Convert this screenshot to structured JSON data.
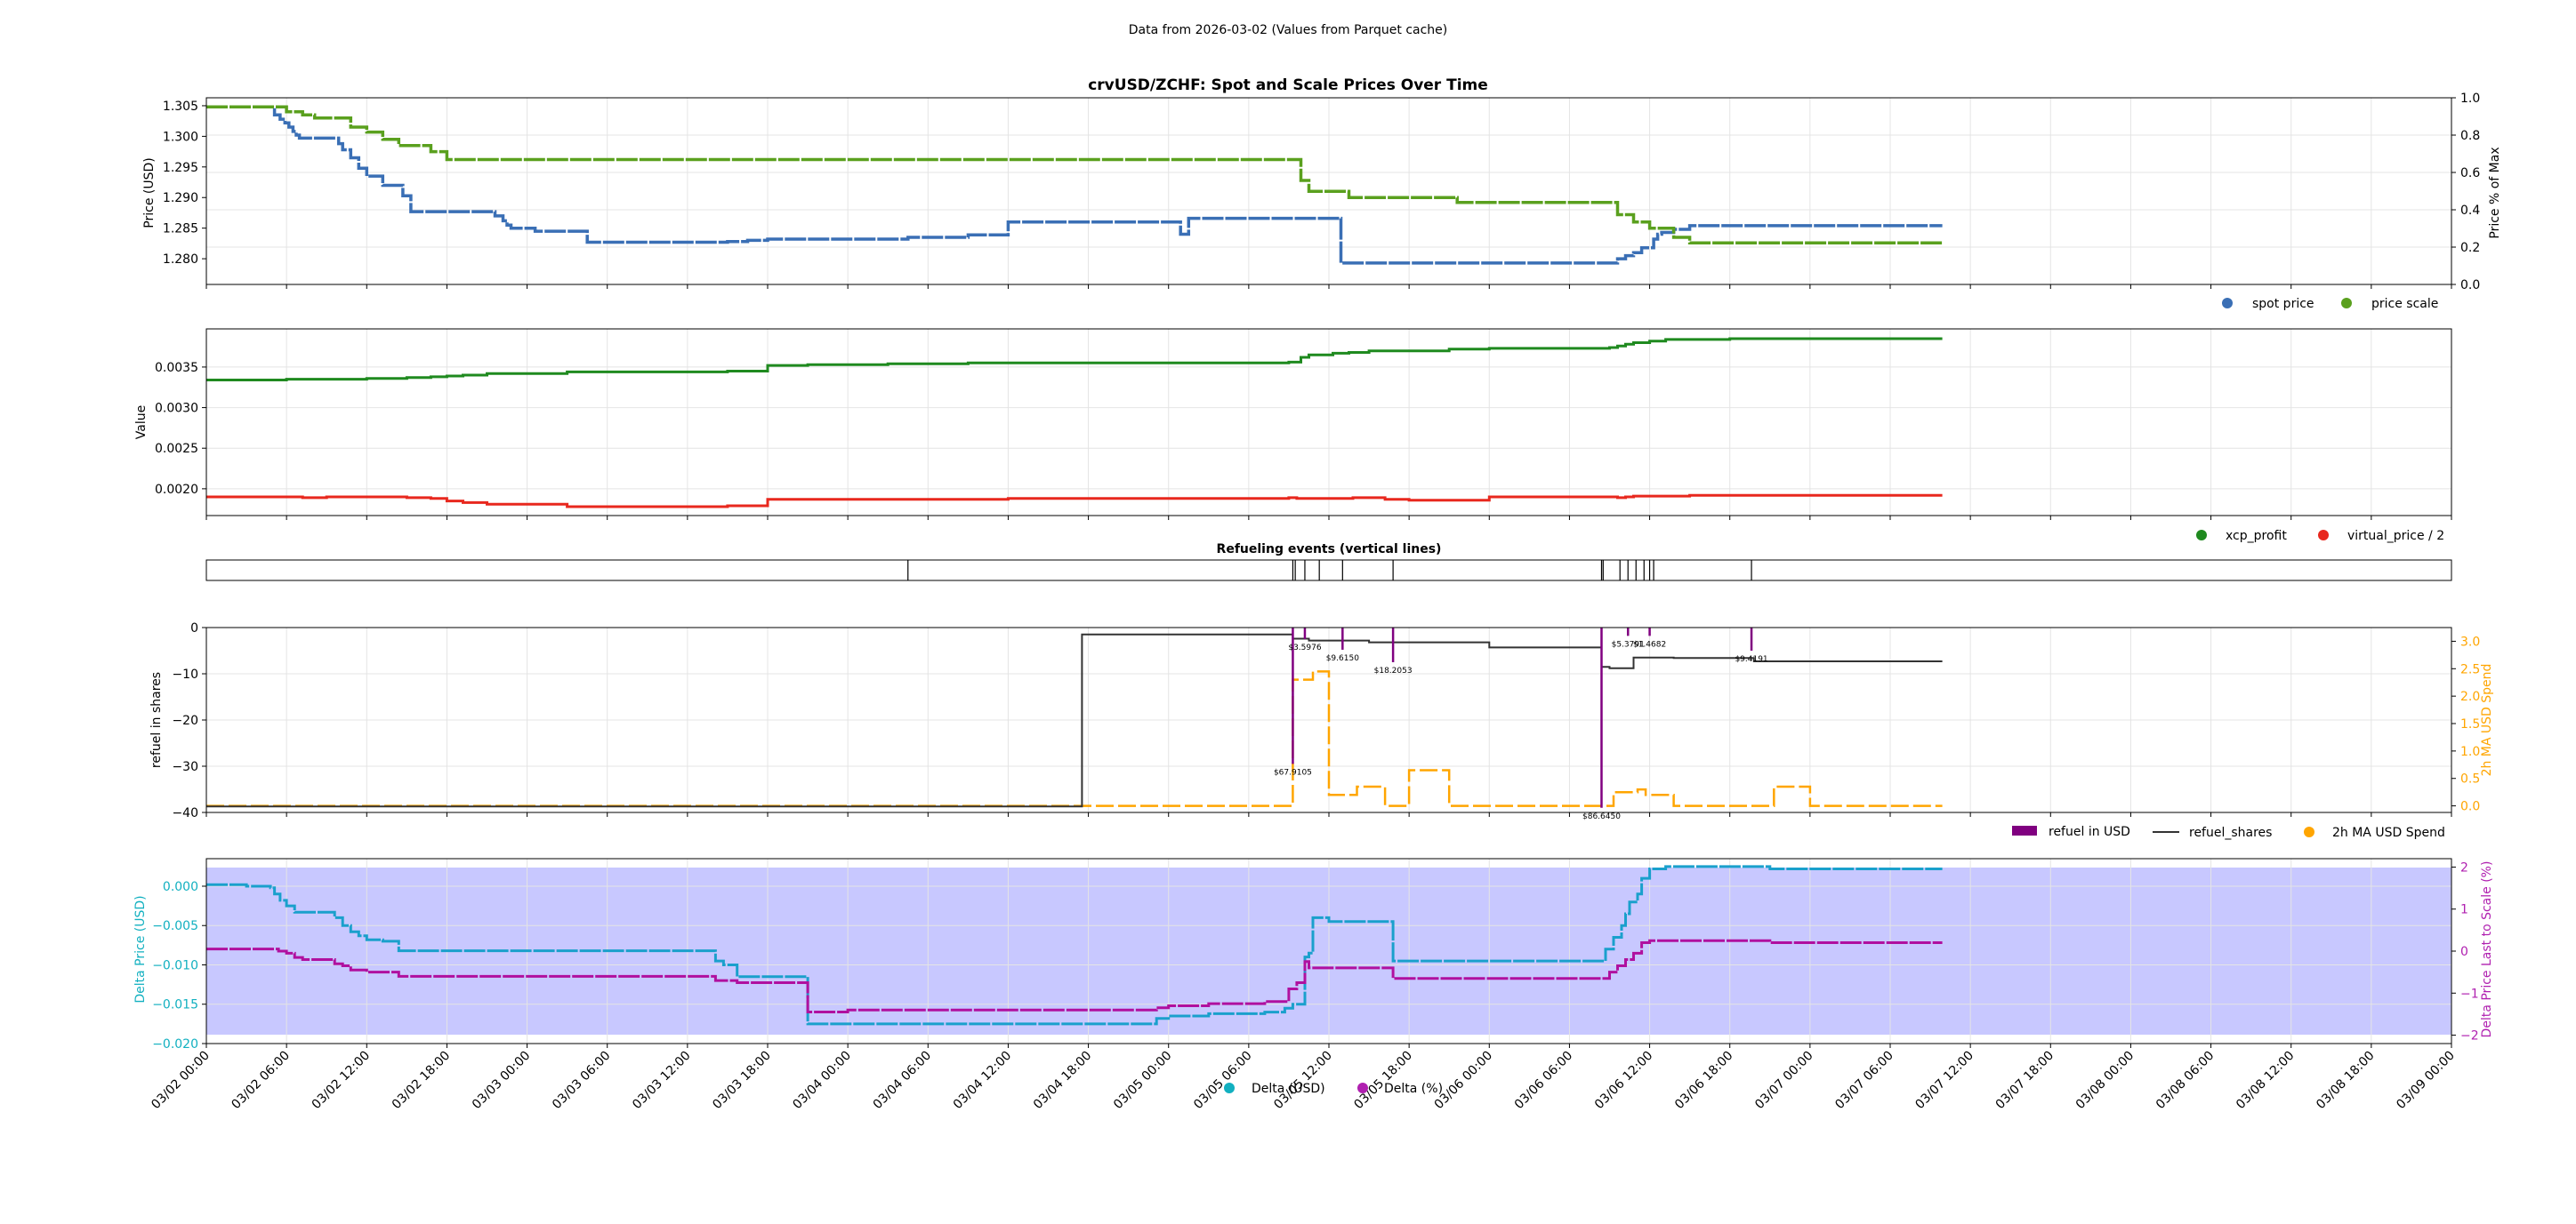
{
  "suptitle": "Data from 2026-03-02 (Values from Parquet cache)",
  "x_ticks": [
    "03/02 00:00",
    "03/02 06:00",
    "03/02 12:00",
    "03/02 18:00",
    "03/03 00:00",
    "03/03 06:00",
    "03/03 12:00",
    "03/03 18:00",
    "03/04 00:00",
    "03/04 06:00",
    "03/04 12:00",
    "03/04 18:00",
    "03/05 00:00",
    "03/05 06:00",
    "03/05 12:00",
    "03/05 18:00",
    "03/06 00:00",
    "03/06 06:00",
    "03/06 12:00",
    "03/06 18:00",
    "03/07 00:00",
    "03/07 06:00",
    "03/07 12:00",
    "03/07 18:00",
    "03/08 00:00",
    "03/08 06:00",
    "03/08 12:00",
    "03/08 18:00",
    "03/09 00:00"
  ],
  "colors": {
    "spot": "#3a6fb5",
    "scale": "#5aa01e",
    "xcp": "#1f8a1f",
    "vp": "#e8281e",
    "refuel": "#800080",
    "shares": "#333333",
    "ma": "#ffa500",
    "delta_usd": "#1aa0cc",
    "delta_pct": "#b0109f",
    "fill": "#c8c8ff",
    "grid": "#e4e4e4",
    "cyan_label": "#12b0c0",
    "magenta_label": "#b020b0"
  },
  "chart_data": [
    {
      "type": "line",
      "title": "crvUSD/ZCHF: Spot and Scale Prices Over Time",
      "ylabel": "Price (USD)",
      "y2label": "Price % of Max",
      "yticks": [
        "1.280",
        "1.285",
        "1.290",
        "1.295",
        "1.300",
        "1.305"
      ],
      "y2ticks": [
        "0.0",
        "0.2",
        "0.4",
        "0.6",
        "0.8",
        "1.0"
      ],
      "ylim": [
        1.2758,
        1.3063
      ],
      "y2lim": [
        0,
        1
      ],
      "legend_position": "lower-right",
      "grid": true,
      "series": [
        {
          "name": "spot price",
          "x": [
            0,
            0.5,
            0.8,
            0.85,
            0.92,
            0.98,
            1.03,
            1.08,
            1.12,
            1.16,
            1.2,
            1.25,
            1.35,
            1.5,
            1.65,
            1.7,
            1.8,
            1.9,
            2.0,
            2.2,
            2.45,
            2.55,
            2.8,
            3.0,
            3.2,
            3.5,
            3.6,
            3.7,
            3.75,
            3.8,
            4.1,
            4.75,
            6.5,
            6.62,
            6.75,
            6.8,
            6.88,
            7.0,
            7.2,
            7.5,
            8.0,
            8.5,
            8.75,
            9.5,
            10.0,
            11.0,
            11.85,
            12.0,
            12.15,
            12.25,
            12.32,
            12.45,
            12.75,
            13.2,
            13.5,
            14.0,
            14.15,
            14.2,
            14.25,
            14.3,
            14.4,
            14.5,
            15.2,
            16.5,
            17.0,
            17.4,
            17.6,
            17.7,
            17.8,
            17.9,
            18.05,
            18.1,
            18.15,
            18.3,
            18.5,
            19.0,
            20.0,
            21.0,
            21.65
          ],
          "y": [
            1.3048,
            1.3048,
            1.3048,
            1.3035,
            1.3028,
            1.3022,
            1.3015,
            1.3008,
            1.3002,
            1.2997,
            1.2997,
            1.2997,
            1.2997,
            1.2997,
            1.2988,
            1.2978,
            1.2965,
            1.2948,
            1.2935,
            1.292,
            1.2903,
            1.2877,
            1.2877,
            1.2877,
            1.2877,
            1.2877,
            1.287,
            1.2862,
            1.2855,
            1.285,
            1.2845,
            1.2827,
            1.2828,
            1.2828,
            1.283,
            1.283,
            1.283,
            1.2832,
            1.2832,
            1.2832,
            1.2832,
            1.2832,
            1.2835,
            1.2839,
            1.286,
            1.286,
            1.286,
            1.286,
            1.284,
            1.2866,
            1.2866,
            1.2866,
            1.2866,
            1.2866,
            1.2866,
            1.2866,
            1.2793,
            1.2793,
            1.2793,
            1.2793,
            1.2793,
            1.2793,
            1.2793,
            1.2793,
            1.2793,
            1.2793,
            1.28,
            1.2805,
            1.281,
            1.2818,
            1.2832,
            1.284,
            1.2843,
            1.2848,
            1.2854,
            1.2854,
            1.2854,
            1.2854,
            1.2854
          ]
        },
        {
          "name": "price scale",
          "x": [
            0,
            0.8,
            1.0,
            1.2,
            1.35,
            1.5,
            1.8,
            2.0,
            2.2,
            2.4,
            2.8,
            3.0,
            3.5,
            4.5,
            6.0,
            8.0,
            10.0,
            12.0,
            13.5,
            13.65,
            13.75,
            14.05,
            14.25,
            14.7,
            15.6,
            17.4,
            17.6,
            17.8,
            18.0,
            18.3,
            18.5,
            19.0,
            20.0,
            20.7,
            21.65
          ],
          "y": [
            1.3048,
            1.3048,
            1.304,
            1.3035,
            1.303,
            1.303,
            1.3015,
            1.3007,
            1.2995,
            1.2985,
            1.2975,
            1.2962,
            1.2962,
            1.2962,
            1.2962,
            1.2962,
            1.2962,
            1.2962,
            1.2962,
            1.2928,
            1.291,
            1.291,
            1.29,
            1.29,
            1.2892,
            1.2892,
            1.2872,
            1.286,
            1.285,
            1.2835,
            1.2826,
            1.2826,
            1.2826,
            1.2826,
            1.2826
          ]
        }
      ]
    },
    {
      "type": "line",
      "ylabel": "Value",
      "yticks": [
        "0.0020",
        "0.0025",
        "0.0030",
        "0.0035"
      ],
      "ylim": [
        0.00167,
        0.00397
      ],
      "legend_position": "lower-right",
      "grid": true,
      "series": [
        {
          "name": "xcp_profit",
          "x": [
            0,
            0.5,
            1.0,
            1.5,
            2.0,
            2.5,
            2.8,
            3.0,
            3.2,
            3.5,
            4.5,
            5.5,
            6.0,
            6.2,
            6.5,
            7.0,
            7.5,
            8.5,
            9.5,
            10.0,
            11.0,
            12.0,
            13.5,
            13.65,
            13.75,
            14.05,
            14.25,
            14.5,
            15.0,
            15.5,
            16.0,
            17.0,
            17.5,
            17.6,
            17.7,
            17.8,
            18.0,
            18.2,
            18.5,
            19.0,
            20.0,
            21.0,
            21.65
          ],
          "y": [
            0.00334,
            0.00334,
            0.00335,
            0.00335,
            0.00336,
            0.00337,
            0.00338,
            0.00339,
            0.0034,
            0.00342,
            0.00344,
            0.00344,
            0.00344,
            0.00344,
            0.00345,
            0.00352,
            0.00353,
            0.00354,
            0.00355,
            0.00355,
            0.00355,
            0.00355,
            0.00356,
            0.00362,
            0.00365,
            0.00367,
            0.00368,
            0.0037,
            0.0037,
            0.00372,
            0.00373,
            0.00373,
            0.00374,
            0.00376,
            0.00378,
            0.0038,
            0.00382,
            0.00384,
            0.00384,
            0.00385,
            0.00385,
            0.00385,
            0.00385
          ]
        },
        {
          "name": "virtual_price / 2",
          "x": [
            0,
            1.0,
            1.2,
            1.5,
            2.0,
            2.3,
            2.5,
            2.8,
            3.0,
            3.2,
            3.5,
            4.5,
            5.5,
            5.9,
            6.0,
            6.2,
            6.5,
            7.0,
            8.0,
            9.0,
            10.0,
            11.0,
            12.0,
            13.5,
            13.6,
            14.0,
            14.3,
            14.7,
            15.0,
            16.0,
            17.0,
            17.5,
            17.6,
            17.7,
            17.8,
            18.0,
            18.2,
            18.5,
            19.0,
            20.0,
            21.0,
            21.65
          ],
          "y": [
            0.0019,
            0.0019,
            0.00189,
            0.0019,
            0.0019,
            0.0019,
            0.00189,
            0.00188,
            0.00185,
            0.00183,
            0.00181,
            0.00178,
            0.00178,
            0.00178,
            0.00178,
            0.00178,
            0.00179,
            0.00187,
            0.00187,
            0.00187,
            0.00188,
            0.00188,
            0.00188,
            0.00189,
            0.00188,
            0.00188,
            0.00189,
            0.00187,
            0.00186,
            0.0019,
            0.0019,
            0.0019,
            0.00189,
            0.0019,
            0.00191,
            0.00191,
            0.00191,
            0.00192,
            0.00192,
            0.00192,
            0.00192,
            0.00192
          ]
        }
      ]
    },
    {
      "type": "event_lines",
      "title": "Refueling events (vertical lines)",
      "x": [
        8.75,
        13.55,
        13.58,
        13.7,
        13.88,
        14.17,
        14.8,
        17.4,
        17.42,
        17.63,
        17.73,
        17.83,
        17.93,
        18.0,
        18.05,
        19.27
      ]
    },
    {
      "type": "bar_line",
      "ylabel": "refuel in shares",
      "y2label": "2h MA USD Spend",
      "yticks": [
        "0",
        "−10",
        "−20",
        "−30",
        "−40"
      ],
      "y2ticks": [
        "0.0",
        "0.5",
        "1.0",
        "1.5",
        "2.0",
        "2.5",
        "3.0"
      ],
      "ylim": [
        -40,
        0
      ],
      "y2lim": [
        -0.12,
        3.25
      ],
      "legend_position": "lower-right",
      "grid": true,
      "refuel_events": [
        {
          "x": 13.55,
          "shares": -29.5,
          "label": "$67.9105"
        },
        {
          "x": 13.7,
          "shares": -2.5,
          "label": "$3.5976"
        },
        {
          "x": 14.17,
          "shares": -4.8,
          "label": "$9.6150"
        },
        {
          "x": 14.8,
          "shares": -7.5,
          "label": "$18.2053"
        },
        {
          "x": 17.4,
          "shares": -39.0,
          "label": "$86.6450"
        },
        {
          "x": 17.73,
          "shares": -1.8,
          "label": "$5.3791"
        },
        {
          "x": 18.0,
          "shares": -1.8,
          "label": "$1.4682"
        },
        {
          "x": 19.27,
          "shares": -5.0,
          "label": "$9.4191"
        }
      ],
      "series": [
        {
          "name": "refuel in USD"
        },
        {
          "name": "refuel_shares",
          "x": [
            0,
            6.0,
            10.9,
            10.92,
            12.0,
            13.5,
            13.55,
            13.7,
            13.75,
            14.17,
            14.5,
            14.8,
            16.0,
            17.38,
            17.4,
            17.42,
            17.5,
            17.75,
            17.8,
            18.0,
            18.3,
            18.5,
            19.0,
            19.27,
            19.3,
            20.0,
            21.0,
            21.65
          ],
          "y": [
            -38.7,
            -38.7,
            -38.7,
            -1.5,
            -1.5,
            -1.5,
            -2.4,
            -2.4,
            -2.8,
            -2.8,
            -3.2,
            -3.2,
            -4.3,
            -4.3,
            -8.5,
            -8.5,
            -8.8,
            -8.8,
            -6.5,
            -6.5,
            -6.6,
            -6.6,
            -6.6,
            -6.6,
            -7.3,
            -7.3,
            -7.3,
            -7.3
          ]
        },
        {
          "name": "2h MA USD Spend",
          "x": [
            0,
            5.0,
            10.0,
            13.52,
            13.55,
            13.75,
            13.8,
            13.95,
            14.0,
            14.1,
            14.35,
            14.45,
            14.7,
            14.8,
            15.0,
            15.2,
            15.5,
            17.38,
            17.4,
            17.55,
            17.8,
            17.85,
            17.95,
            18.1,
            18.3,
            18.45,
            19.2,
            19.3,
            19.55,
            19.65,
            20.0,
            20.7,
            21.0,
            21.65
          ],
          "y": [
            0.0,
            0.0,
            0.0,
            0.0,
            2.3,
            2.3,
            2.45,
            2.45,
            0.2,
            0.2,
            0.35,
            0.35,
            0.0,
            0.0,
            0.65,
            0.65,
            0.0,
            0.0,
            0.0,
            0.25,
            0.25,
            0.3,
            0.2,
            0.2,
            0.0,
            0.0,
            0.0,
            0.0,
            0.35,
            0.35,
            0.0,
            0.0,
            0.0,
            0.0
          ]
        }
      ]
    },
    {
      "type": "line",
      "ylabel": "Delta Price (USD)",
      "y2label": "Delta Price Last to Scale (%)",
      "yticks": [
        "0.000",
        "−0.005",
        "−0.010",
        "−0.015",
        "−0.020"
      ],
      "y2ticks": [
        "2",
        "1",
        "0",
        "−1",
        "−2"
      ],
      "ylim": [
        -0.02,
        0.0035
      ],
      "y2lim": [
        -2.2,
        2.2
      ],
      "legend_position": "bottom-center",
      "grid": true,
      "series": [
        {
          "name": "Delta (USD)",
          "x": [
            0,
            0.5,
            0.8,
            0.85,
            0.92,
            1.0,
            1.1,
            1.2,
            1.5,
            1.6,
            1.7,
            1.8,
            1.9,
            2.0,
            2.2,
            2.4,
            2.8,
            3.0,
            3.5,
            4.5,
            5.5,
            6.2,
            6.35,
            6.45,
            6.5,
            6.62,
            7.0,
            7.5,
            8.0,
            9.0,
            10.0,
            11.0,
            11.85,
            12.0,
            12.5,
            13.2,
            13.45,
            13.55,
            13.7,
            13.75,
            13.8,
            14.0,
            14.3,
            14.5,
            14.8,
            15.0,
            16.0,
            17.0,
            17.4,
            17.45,
            17.55,
            17.65,
            17.7,
            17.75,
            17.85,
            17.9,
            18.0,
            18.2,
            18.5,
            19.0,
            19.5,
            20.0,
            21.0,
            21.65
          ],
          "y": [
            0.0002,
            0.0,
            -0.0002,
            -0.001,
            -0.0018,
            -0.0025,
            -0.0033,
            -0.0033,
            -0.0033,
            -0.004,
            -0.005,
            -0.0058,
            -0.0063,
            -0.0068,
            -0.007,
            -0.0082,
            -0.0082,
            -0.0082,
            -0.0082,
            -0.0082,
            -0.0082,
            -0.0082,
            -0.0095,
            -0.01,
            -0.01,
            -0.0115,
            -0.0115,
            -0.0175,
            -0.0175,
            -0.0175,
            -0.0175,
            -0.0175,
            -0.0168,
            -0.0165,
            -0.0162,
            -0.016,
            -0.0155,
            -0.015,
            -0.009,
            -0.0085,
            -0.004,
            -0.0045,
            -0.0045,
            -0.0045,
            -0.0095,
            -0.0095,
            -0.0095,
            -0.0095,
            -0.0095,
            -0.008,
            -0.0065,
            -0.005,
            -0.0035,
            -0.002,
            -0.001,
            0.001,
            0.0022,
            0.0025,
            0.0025,
            0.0025,
            0.0022,
            0.0022,
            0.0022,
            0.0022
          ]
        },
        {
          "name": "Delta (%)",
          "x": [
            0,
            0.5,
            0.8,
            0.9,
            1.0,
            1.1,
            1.2,
            1.5,
            1.6,
            1.7,
            1.8,
            2.0,
            2.2,
            2.4,
            2.8,
            3.0,
            3.5,
            4.5,
            5.5,
            6.2,
            6.35,
            6.5,
            6.62,
            7.0,
            7.5,
            8.0,
            9.0,
            10.0,
            11.0,
            11.85,
            12.0,
            12.5,
            13.2,
            13.5,
            13.6,
            13.7,
            13.75,
            14.0,
            14.3,
            14.5,
            14.8,
            15.0,
            16.0,
            17.0,
            17.4,
            17.5,
            17.6,
            17.7,
            17.8,
            17.9,
            18.0,
            18.2,
            18.5,
            19.0,
            19.5,
            20.0,
            21.0,
            21.65
          ],
          "y": [
            0.05,
            0.05,
            0.05,
            0.0,
            -0.05,
            -0.15,
            -0.2,
            -0.2,
            -0.3,
            -0.35,
            -0.45,
            -0.5,
            -0.5,
            -0.6,
            -0.6,
            -0.6,
            -0.6,
            -0.6,
            -0.6,
            -0.6,
            -0.7,
            -0.7,
            -0.75,
            -0.75,
            -1.45,
            -1.4,
            -1.4,
            -1.4,
            -1.4,
            -1.35,
            -1.3,
            -1.25,
            -1.2,
            -0.9,
            -0.75,
            -0.25,
            -0.4,
            -0.4,
            -0.4,
            -0.4,
            -0.65,
            -0.65,
            -0.65,
            -0.65,
            -0.65,
            -0.5,
            -0.35,
            -0.2,
            -0.05,
            0.2,
            0.25,
            0.25,
            0.25,
            0.25,
            0.2,
            0.2,
            0.2,
            0.2
          ]
        }
      ]
    }
  ]
}
